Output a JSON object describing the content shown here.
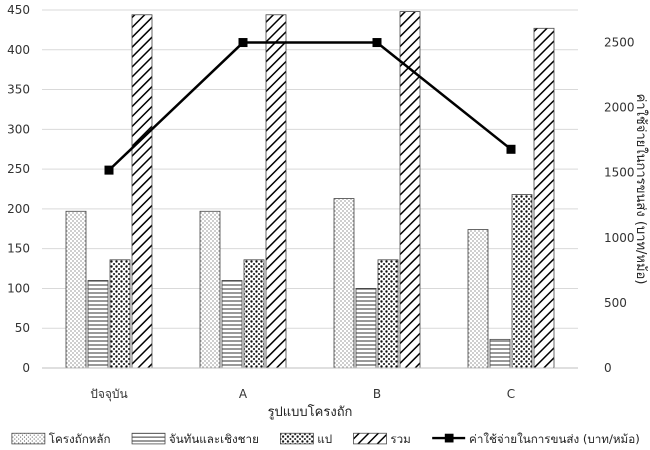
{
  "chart_data": {
    "type": "bar",
    "categories": [
      "ปัจจุบัน",
      "A",
      "B",
      "C"
    ],
    "xlabel": "รูปแบบโครงถัก",
    "ylabel": "",
    "y2label": "ค่าใช้จ่ายในการขนส่ง (บาท/หม้อ)",
    "ylim": [
      0,
      450
    ],
    "y2lim": [
      0,
      2750
    ],
    "yticks": [
      0,
      50,
      100,
      150,
      200,
      250,
      300,
      350,
      400,
      450
    ],
    "y2ticks": [
      0,
      500,
      1000,
      1500,
      2000,
      2500
    ],
    "grid": true,
    "legend_position": "bottom",
    "series": [
      {
        "name": "โครงถักหลัก",
        "kind": "bar",
        "pattern": "dots-fine",
        "values": [
          197,
          197,
          213,
          174
        ]
      },
      {
        "name": "จันทันและเชิงชาย",
        "kind": "bar",
        "pattern": "horizontal-lines",
        "values": [
          110,
          110,
          100,
          36
        ]
      },
      {
        "name": "แป",
        "kind": "bar",
        "pattern": "dots-coarse",
        "values": [
          136,
          136,
          136,
          218
        ]
      },
      {
        "name": "รวม",
        "kind": "bar",
        "pattern": "diagonal-lines",
        "values": [
          444,
          444,
          448,
          427
        ]
      },
      {
        "name": "ค่าใช้จ่ายในการขนส่ง (บาท/หม้อ)",
        "kind": "line",
        "axis": "right",
        "color": "#000000",
        "values": [
          1520,
          2500,
          2500,
          1680
        ]
      }
    ]
  }
}
